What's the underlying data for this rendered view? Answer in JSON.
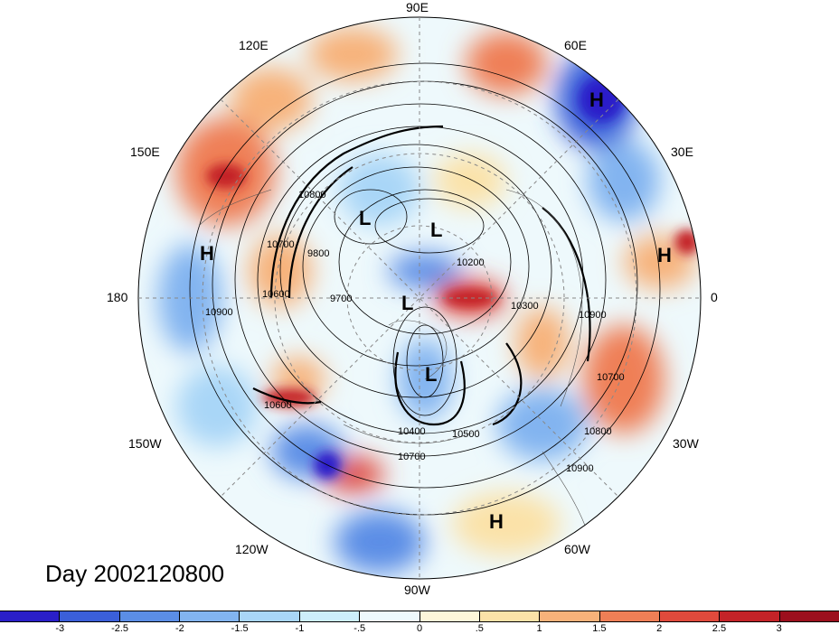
{
  "title": "Day 2002120800",
  "longitude_labels": {
    "n90e": "90E",
    "n120e": "120E",
    "n60e": "60E",
    "n150e": "150E",
    "n30e": "30E",
    "n180": "180",
    "n0": "0",
    "n150w": "150W",
    "n30w": "30W",
    "n120w": "120W",
    "n60w": "60W",
    "n90w": "90W"
  },
  "pressure_systems": [
    {
      "label": "H"
    },
    {
      "label": "H"
    },
    {
      "label": "H"
    },
    {
      "label": "H"
    },
    {
      "label": "L"
    },
    {
      "label": "L"
    },
    {
      "label": "L"
    },
    {
      "label": "L"
    }
  ],
  "contour_labels": [
    "10800",
    "10700",
    "9800",
    "10600",
    "10900",
    "9700",
    "10200",
    "10300",
    "10900",
    "10700",
    "10800",
    "10900",
    "10600",
    "10400",
    "10500",
    "10700"
  ],
  "colorbar": {
    "ticks": [
      "-3",
      "-2.5",
      "-2",
      "-1.5",
      "-1",
      "-.5",
      "0",
      ".5",
      "1",
      "1.5",
      "2",
      "2.5",
      "3"
    ],
    "colors": [
      "#2a1fc9",
      "#3b5fd9",
      "#5b8ee6",
      "#82b4f0",
      "#a9d6f7",
      "#cdeefb",
      "#eef9fc",
      "#fdf6d9",
      "#fbe2a8",
      "#f7b27a",
      "#ef7f56",
      "#e04a3c",
      "#c42328",
      "#9c0f1d"
    ]
  },
  "chart_data": {
    "type": "heatmap",
    "projection": "north polar stereographic",
    "contour_field": "geopotential height",
    "contour_levels_labeled": [
      9700,
      9800,
      10200,
      10300,
      10400,
      10500,
      10600,
      10700,
      10800,
      10900
    ],
    "color_scale": {
      "min": -3,
      "max": 3,
      "interval": 0.5
    },
    "colors_that_matter": {
      "negative": "#2a1fc9",
      "positive": "#9c0f1d",
      "neutral": "#eef9fc"
    }
  }
}
